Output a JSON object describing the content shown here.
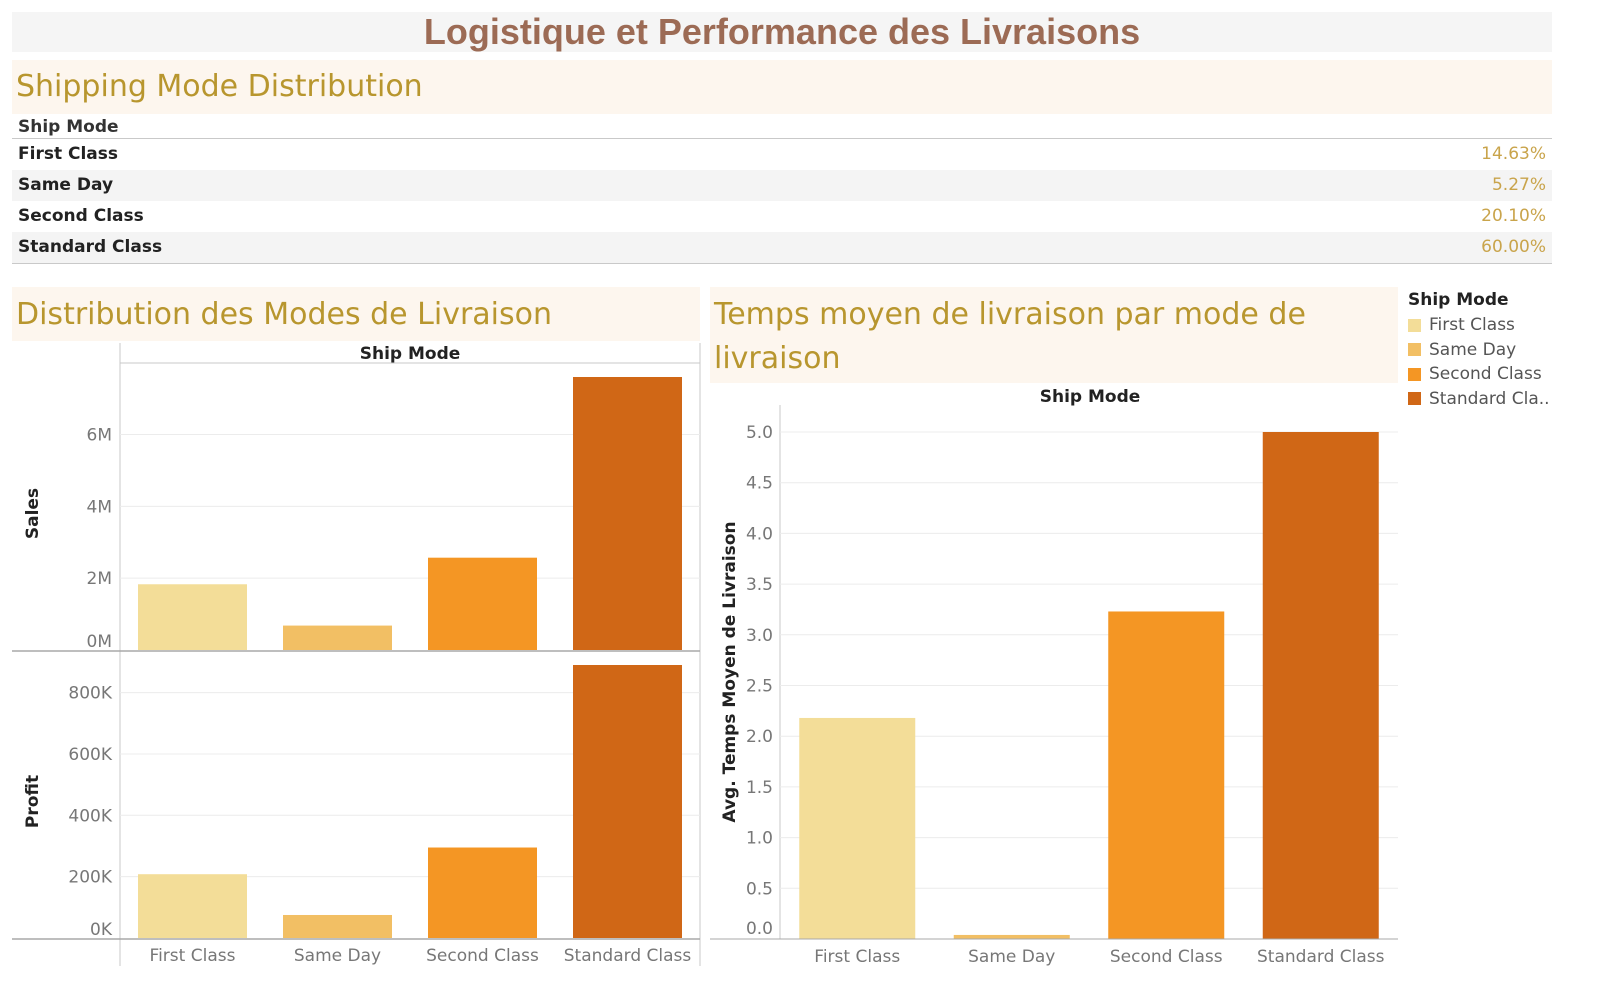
{
  "page_title": "Logistique et Performance des Livraisons",
  "distribution_section": {
    "title": "Shipping Mode Distribution",
    "header": "Ship Mode",
    "rows": [
      {
        "label": "First Class",
        "value": "14.63%"
      },
      {
        "label": "Same Day",
        "value": "5.27%"
      },
      {
        "label": "Second Class",
        "value": "20.10%"
      },
      {
        "label": "Standard Class",
        "value": "60.00%"
      }
    ]
  },
  "modes_section": {
    "title": "Distribution des Modes de Livraison"
  },
  "temps_section": {
    "title": "Temps moyen de livraison par mode de livraison"
  },
  "legend": {
    "title": "Ship Mode",
    "items": [
      {
        "label": "First Class",
        "color": "#f3dd98"
      },
      {
        "label": "Same Day",
        "color": "#f2bf64"
      },
      {
        "label": "Second Class",
        "color": "#f49624"
      },
      {
        "label": "Standard Cla..",
        "color": "#d06716"
      }
    ]
  },
  "chart_data": [
    {
      "type": "bar",
      "title": "Distribution des Modes de Livraison",
      "column_header": "Ship Mode",
      "categories": [
        "First Class",
        "Same Day",
        "Second Class",
        "Standard Class"
      ],
      "colors": [
        "#f3dd98",
        "#f2bf64",
        "#f49624",
        "#d06716"
      ],
      "panels": [
        {
          "ylabel": "Sales",
          "values": [
            1830000,
            680000,
            2570000,
            7600000
          ],
          "ylim": [
            0,
            7600000
          ],
          "ticks": [
            0,
            2000000,
            4000000,
            6000000
          ],
          "tick_labels": [
            "0M",
            "2M",
            "4M",
            "6M"
          ]
        },
        {
          "ylabel": "Profit",
          "values": [
            208000,
            75000,
            295000,
            890000
          ],
          "ylim": [
            0,
            890000
          ],
          "ticks": [
            0,
            200000,
            400000,
            600000,
            800000
          ],
          "tick_labels": [
            "0K",
            "200K",
            "400K",
            "600K",
            "800K"
          ]
        }
      ],
      "grid": true
    },
    {
      "type": "bar",
      "title": "Temps moyen de livraison par mode de livraison",
      "column_header": "Ship Mode",
      "ylabel": "Avg. Temps Moyen de Livraison",
      "categories": [
        "First Class",
        "Same Day",
        "Second Class",
        "Standard Class"
      ],
      "colors": [
        "#f3dd98",
        "#f2bf64",
        "#f49624",
        "#d06716"
      ],
      "values": [
        2.18,
        0.04,
        3.23,
        5.0
      ],
      "ylim": [
        0,
        5.0
      ],
      "ticks": [
        0,
        0.5,
        1,
        1.5,
        2,
        2.5,
        3,
        3.5,
        4,
        4.5,
        5
      ],
      "tick_labels": [
        "0.0",
        "0.5",
        "1.0",
        "1.5",
        "2.0",
        "2.5",
        "3.0",
        "3.5",
        "4.0",
        "4.5",
        "5.0"
      ],
      "grid": true
    }
  ]
}
